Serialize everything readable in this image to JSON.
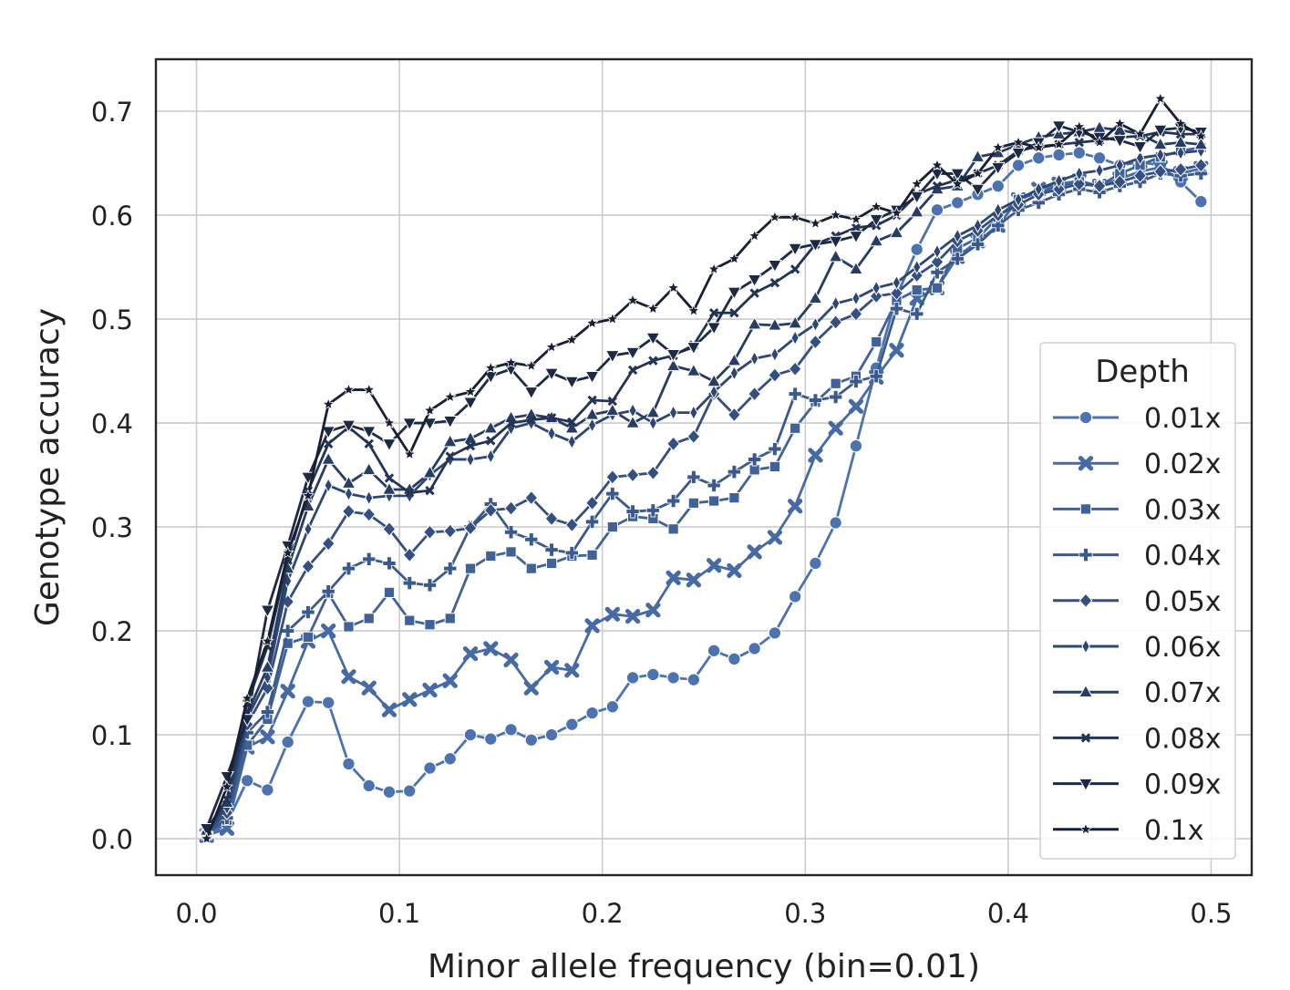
{
  "chart_data": {
    "type": "line",
    "title": "",
    "xlabel": "Minor allele frequency (bin=0.01)",
    "ylabel": "Genotype accuracy",
    "xlim": [
      -0.02,
      0.52
    ],
    "ylim": [
      -0.035,
      0.75
    ],
    "xticks": [
      "0.0",
      "0.1",
      "0.2",
      "0.3",
      "0.4",
      "0.5"
    ],
    "yticks": [
      "0.0",
      "0.1",
      "0.2",
      "0.3",
      "0.4",
      "0.5",
      "0.6",
      "0.7"
    ],
    "grid": true,
    "legend": {
      "title": "Depth",
      "placement": "lower-right"
    },
    "x": [
      0.005,
      0.015,
      0.025,
      0.035,
      0.045,
      0.055,
      0.065,
      0.075,
      0.085,
      0.095,
      0.105,
      0.115,
      0.125,
      0.135,
      0.145,
      0.155,
      0.165,
      0.175,
      0.185,
      0.195,
      0.205,
      0.215,
      0.225,
      0.235,
      0.245,
      0.255,
      0.265,
      0.275,
      0.285,
      0.295,
      0.305,
      0.315,
      0.325,
      0.335,
      0.345,
      0.355,
      0.365,
      0.375,
      0.385,
      0.395,
      0.405,
      0.415,
      0.425,
      0.435,
      0.445,
      0.455,
      0.465,
      0.475,
      0.485,
      0.495
    ],
    "series": [
      {
        "name": "0.01x",
        "marker": "circle",
        "color": "#4c72b0",
        "values": [
          0.002,
          0.015,
          0.056,
          0.047,
          0.093,
          0.132,
          0.131,
          0.072,
          0.051,
          0.045,
          0.046,
          0.068,
          0.077,
          0.1,
          0.096,
          0.105,
          0.095,
          0.1,
          0.11,
          0.121,
          0.127,
          0.155,
          0.158,
          0.155,
          0.153,
          0.181,
          0.173,
          0.183,
          0.198,
          0.233,
          0.265,
          0.304,
          0.378,
          0.453,
          0.522,
          0.567,
          0.605,
          0.612,
          0.62,
          0.628,
          0.648,
          0.655,
          0.658,
          0.66,
          0.655,
          0.648,
          0.651,
          0.648,
          0.632,
          0.613
        ]
      },
      {
        "name": "0.02x",
        "marker": "x-thick",
        "color": "#466aa4",
        "values": [
          0.003,
          0.01,
          0.088,
          0.098,
          0.142,
          0.19,
          0.2,
          0.156,
          0.145,
          0.124,
          0.134,
          0.143,
          0.152,
          0.178,
          0.183,
          0.172,
          0.145,
          0.165,
          0.162,
          0.205,
          0.216,
          0.214,
          0.22,
          0.251,
          0.249,
          0.263,
          0.258,
          0.276,
          0.29,
          0.32,
          0.369,
          0.395,
          0.416,
          0.444,
          0.47,
          0.52,
          0.53,
          0.56,
          0.575,
          0.59,
          0.615,
          0.625,
          0.63,
          0.633,
          0.628,
          0.635,
          0.642,
          0.646,
          0.64,
          0.645
        ]
      },
      {
        "name": "0.03x",
        "marker": "square",
        "color": "#406299",
        "values": [
          0.004,
          0.018,
          0.09,
          0.115,
          0.188,
          0.194,
          0.236,
          0.204,
          0.212,
          0.237,
          0.21,
          0.206,
          0.212,
          0.26,
          0.272,
          0.276,
          0.26,
          0.265,
          0.272,
          0.273,
          0.3,
          0.31,
          0.308,
          0.298,
          0.323,
          0.325,
          0.328,
          0.355,
          0.358,
          0.395,
          0.42,
          0.438,
          0.445,
          0.478,
          0.518,
          0.528,
          0.53,
          0.568,
          0.578,
          0.598,
          0.615,
          0.622,
          0.628,
          0.632,
          0.628,
          0.64,
          0.648,
          0.656,
          0.662,
          0.665
        ]
      },
      {
        "name": "0.04x",
        "marker": "plus",
        "color": "#3a598d",
        "values": [
          0.005,
          0.02,
          0.102,
          0.122,
          0.2,
          0.218,
          0.238,
          0.26,
          0.269,
          0.265,
          0.246,
          0.244,
          0.26,
          0.3,
          0.322,
          0.295,
          0.288,
          0.278,
          0.275,
          0.305,
          0.332,
          0.315,
          0.316,
          0.325,
          0.348,
          0.34,
          0.353,
          0.365,
          0.375,
          0.428,
          0.422,
          0.425,
          0.44,
          0.445,
          0.51,
          0.505,
          0.545,
          0.558,
          0.572,
          0.59,
          0.605,
          0.612,
          0.62,
          0.625,
          0.622,
          0.628,
          0.632,
          0.64,
          0.638,
          0.64
        ]
      },
      {
        "name": "0.05x",
        "marker": "diamond",
        "color": "#344f80",
        "values": [
          0.006,
          0.025,
          0.11,
          0.145,
          0.228,
          0.262,
          0.284,
          0.315,
          0.312,
          0.298,
          0.273,
          0.295,
          0.296,
          0.299,
          0.316,
          0.318,
          0.328,
          0.308,
          0.302,
          0.323,
          0.348,
          0.35,
          0.352,
          0.38,
          0.387,
          0.428,
          0.408,
          0.428,
          0.446,
          0.452,
          0.478,
          0.497,
          0.505,
          0.522,
          0.525,
          0.542,
          0.555,
          0.575,
          0.585,
          0.6,
          0.61,
          0.62,
          0.625,
          0.63,
          0.628,
          0.632,
          0.638,
          0.642,
          0.644,
          0.648
        ]
      },
      {
        "name": "0.06x",
        "marker": "thin-diamond",
        "color": "#2e4672",
        "values": [
          0.007,
          0.03,
          0.116,
          0.155,
          0.248,
          0.298,
          0.34,
          0.332,
          0.328,
          0.33,
          0.33,
          0.35,
          0.365,
          0.365,
          0.368,
          0.395,
          0.4,
          0.39,
          0.382,
          0.398,
          0.408,
          0.412,
          0.4,
          0.41,
          0.41,
          0.43,
          0.448,
          0.462,
          0.466,
          0.482,
          0.495,
          0.515,
          0.52,
          0.53,
          0.535,
          0.55,
          0.565,
          0.58,
          0.59,
          0.605,
          0.615,
          0.625,
          0.633,
          0.64,
          0.643,
          0.648,
          0.655,
          0.658,
          0.66,
          0.662
        ]
      },
      {
        "name": "0.07x",
        "marker": "triangle-up",
        "color": "#283d63",
        "values": [
          0.008,
          0.035,
          0.12,
          0.165,
          0.26,
          0.32,
          0.365,
          0.342,
          0.355,
          0.336,
          0.336,
          0.352,
          0.382,
          0.385,
          0.395,
          0.405,
          0.408,
          0.405,
          0.395,
          0.408,
          0.412,
          0.4,
          0.41,
          0.455,
          0.45,
          0.44,
          0.46,
          0.495,
          0.494,
          0.496,
          0.52,
          0.56,
          0.548,
          0.575,
          0.583,
          0.603,
          0.625,
          0.628,
          0.656,
          0.66,
          0.668,
          0.675,
          0.678,
          0.68,
          0.684,
          0.682,
          0.678,
          0.668,
          0.67,
          0.668
        ]
      },
      {
        "name": "0.08x",
        "marker": "x-small",
        "color": "#233454",
        "values": [
          0.009,
          0.038,
          0.13,
          0.185,
          0.268,
          0.335,
          0.38,
          0.396,
          0.38,
          0.347,
          0.333,
          0.335,
          0.368,
          0.378,
          0.383,
          0.4,
          0.403,
          0.405,
          0.401,
          0.422,
          0.421,
          0.451,
          0.46,
          0.465,
          0.475,
          0.506,
          0.506,
          0.525,
          0.535,
          0.548,
          0.572,
          0.58,
          0.588,
          0.59,
          0.6,
          0.62,
          0.628,
          0.634,
          0.64,
          0.648,
          0.662,
          0.666,
          0.668,
          0.67,
          0.672,
          0.675,
          0.676,
          0.68,
          0.678,
          0.678
        ]
      },
      {
        "name": "0.09x",
        "marker": "triangle-down",
        "color": "#1d2a44",
        "values": [
          0.01,
          0.06,
          0.115,
          0.22,
          0.282,
          0.348,
          0.392,
          0.398,
          0.392,
          0.38,
          0.4,
          0.4,
          0.402,
          0.42,
          0.445,
          0.452,
          0.43,
          0.448,
          0.44,
          0.445,
          0.465,
          0.468,
          0.482,
          0.466,
          0.473,
          0.492,
          0.526,
          0.538,
          0.552,
          0.568,
          0.572,
          0.575,
          0.58,
          0.596,
          0.605,
          0.618,
          0.64,
          0.64,
          0.625,
          0.646,
          0.66,
          0.67,
          0.686,
          0.68,
          0.675,
          0.672,
          0.666,
          0.682,
          0.684,
          0.68
        ]
      },
      {
        "name": "0.1x",
        "marker": "star",
        "color": "#181f33",
        "values": [
          0.0,
          0.05,
          0.135,
          0.19,
          0.275,
          0.33,
          0.418,
          0.432,
          0.432,
          0.4,
          0.37,
          0.412,
          0.425,
          0.43,
          0.453,
          0.458,
          0.455,
          0.473,
          0.48,
          0.496,
          0.5,
          0.518,
          0.51,
          0.53,
          0.508,
          0.548,
          0.558,
          0.58,
          0.598,
          0.598,
          0.592,
          0.6,
          0.596,
          0.608,
          0.602,
          0.63,
          0.648,
          0.63,
          0.64,
          0.665,
          0.67,
          0.665,
          0.668,
          0.685,
          0.67,
          0.688,
          0.678,
          0.712,
          0.688,
          0.676
        ]
      }
    ]
  }
}
